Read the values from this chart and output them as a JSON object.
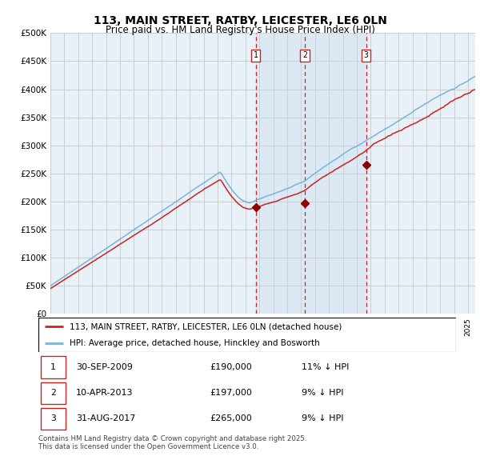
{
  "title": "113, MAIN STREET, RATBY, LEICESTER, LE6 0LN",
  "subtitle": "Price paid vs. HM Land Registry's House Price Index (HPI)",
  "ylabel_ticks": [
    "£0",
    "£50K",
    "£100K",
    "£150K",
    "£200K",
    "£250K",
    "£300K",
    "£350K",
    "£400K",
    "£450K",
    "£500K"
  ],
  "ylim": [
    0,
    500000
  ],
  "xlim_start": 1995.0,
  "xlim_end": 2025.5,
  "legend_line1": "113, MAIN STREET, RATBY, LEICESTER, LE6 0LN (detached house)",
  "legend_line2": "HPI: Average price, detached house, Hinckley and Bosworth",
  "sale_points": [
    {
      "label": "1",
      "date": "30-SEP-2009",
      "price": 190000,
      "note": "11% ↓ HPI",
      "x": 2009.75
    },
    {
      "label": "2",
      "date": "10-APR-2013",
      "price": 197000,
      "note": "9% ↓ HPI",
      "x": 2013.27
    },
    {
      "label": "3",
      "date": "31-AUG-2017",
      "price": 265000,
      "note": "9% ↓ HPI",
      "x": 2017.67
    }
  ],
  "footnote": "Contains HM Land Registry data © Crown copyright and database right 2025.\nThis data is licensed under the Open Government Licence v3.0.",
  "hpi_color": "#7ab3d9",
  "price_color": "#cc2222",
  "sale_marker_color": "#8b0000",
  "vline_color": "#cc2222",
  "grid_color": "#cccccc",
  "background_color": "#ffffff",
  "plot_background": "#e8f0f8",
  "shade_color": "#c8ddf0"
}
